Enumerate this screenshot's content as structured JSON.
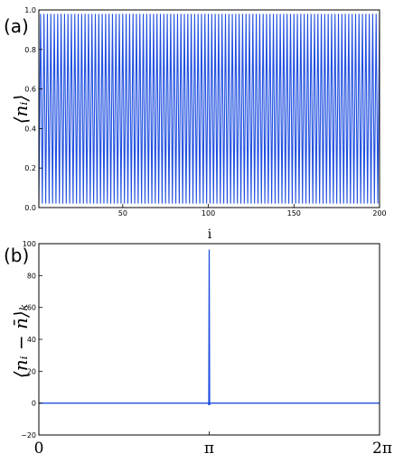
{
  "chart_data": [
    {
      "type": "line",
      "panel_label": "(a)",
      "ylabel": "⟨nᵢ⟩",
      "xlabel": "",
      "xlim": [
        1,
        200
      ],
      "ylim": [
        0.0,
        1.0
      ],
      "xticks": [
        50,
        100,
        150,
        200
      ],
      "xtick_labels": [
        "50",
        "100",
        "150",
        "200"
      ],
      "yticks": [
        0.0,
        0.2,
        0.4,
        0.6,
        0.8,
        1.0
      ],
      "ytick_labels": [
        "0.0",
        "0.2",
        "0.4",
        "0.6",
        "0.8",
        "1.0"
      ],
      "series_color": "#1f4fe0",
      "pattern": "alternating sites",
      "odd_site_value": 0.02,
      "even_site_value": 0.98,
      "grid": false
    },
    {
      "type": "line",
      "panel_label": "(b)",
      "ylabel": "⟨nᵢ − n̄⟩ₖ",
      "xlabel": "",
      "xlim": [
        0,
        6.2832
      ],
      "ylim": [
        -20,
        100
      ],
      "xticks": [
        0,
        3.1416,
        6.2832
      ],
      "xtick_labels": [
        "0",
        "π",
        "2π"
      ],
      "yticks": [
        -20,
        0,
        20,
        40,
        60,
        80,
        100
      ],
      "ytick_labels": [
        "−20",
        "0",
        "20",
        "40",
        "60",
        "80",
        "100"
      ],
      "series_color": "#1f4fe0",
      "baseline_value": 0,
      "peak": {
        "x": 3.1416,
        "y": 96
      },
      "annotation": "i",
      "grid": false
    }
  ]
}
